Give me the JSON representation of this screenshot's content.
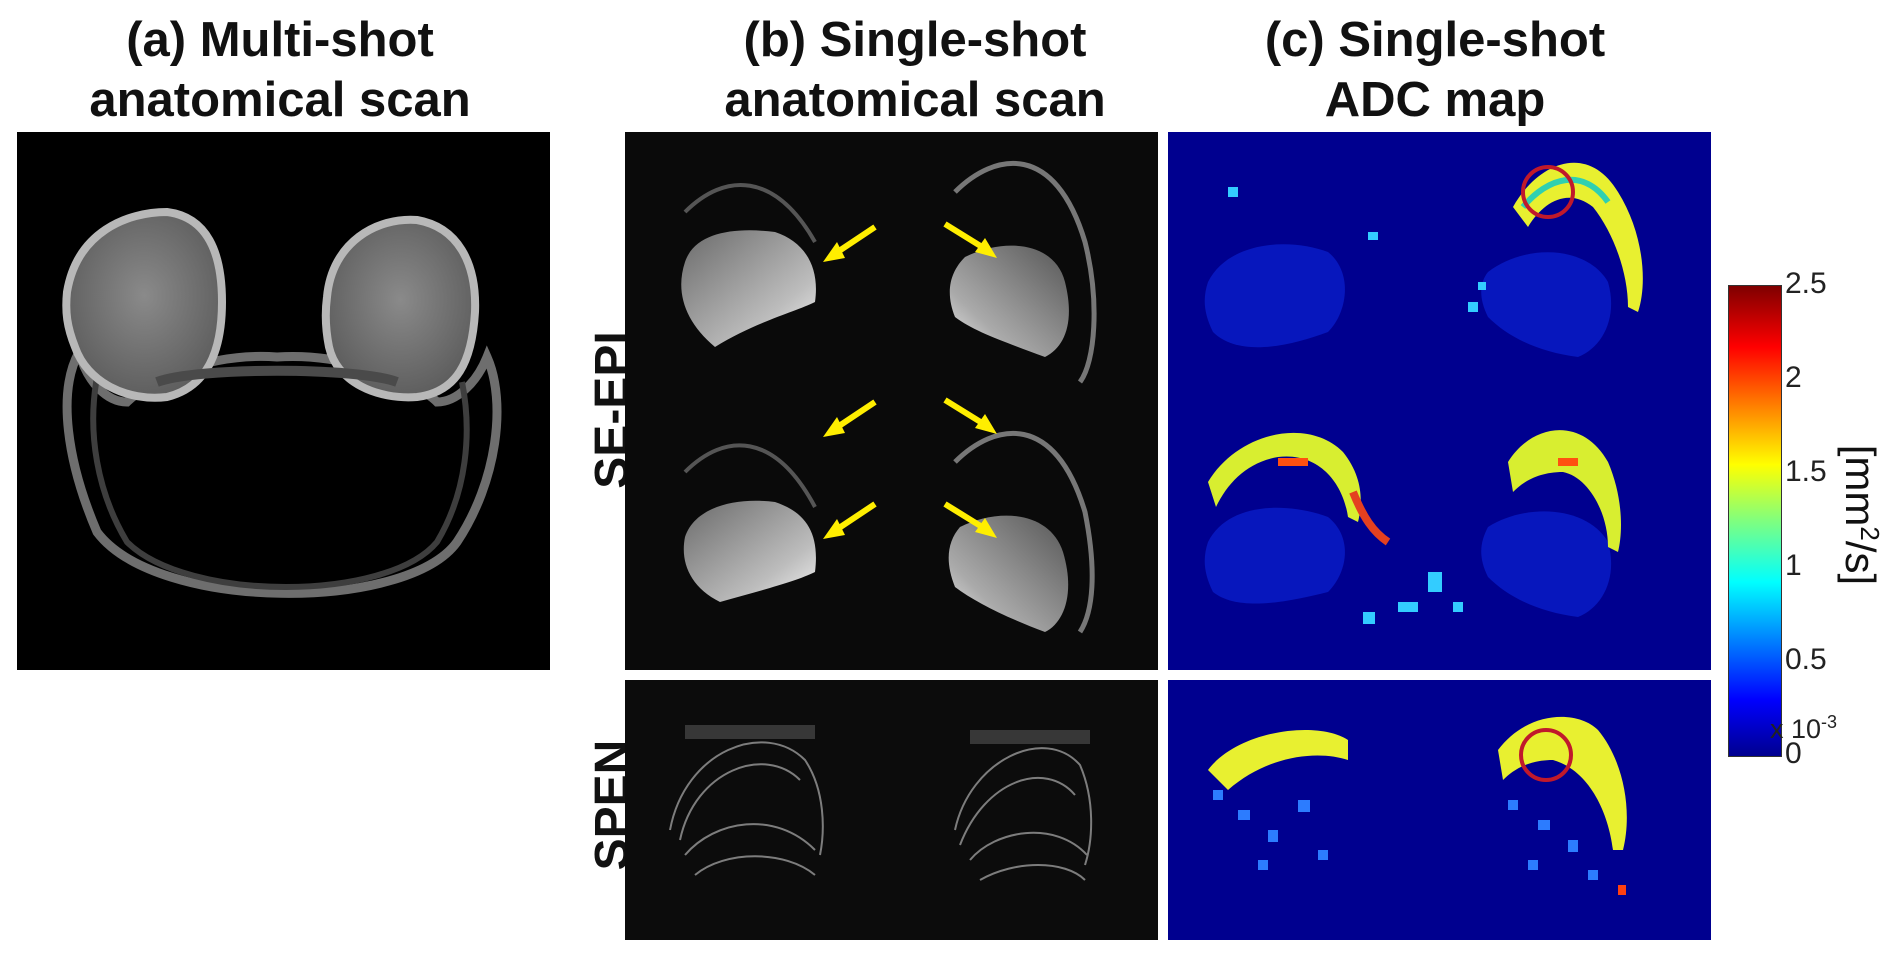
{
  "titles": {
    "a": [
      "(a) Multi-shot",
      "anatomical scan"
    ],
    "b": [
      "(b) Single-shot",
      "anatomical scan"
    ],
    "c": [
      "(c) Single-shot",
      "ADC map"
    ]
  },
  "rows": {
    "se_epi": "SE-EPI",
    "spen": "SPEN"
  },
  "colorbar": {
    "ticks": [
      "2.5",
      "2",
      "1.5",
      "1",
      "0.5",
      "0"
    ],
    "multiplier": "x 10",
    "multiplier_exp": "-3",
    "unit_prefix": "[mm",
    "unit_exp": "2",
    "unit_suffix": "/s]"
  },
  "colors": {
    "arrow": "#ffee00",
    "circle": "#c0192b",
    "adc_background": "#00008f"
  }
}
